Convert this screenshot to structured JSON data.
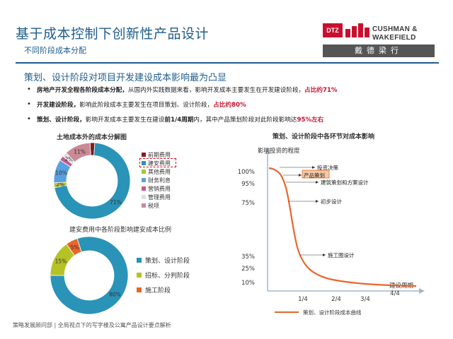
{
  "header": {
    "title": "基于成本控制下创新性产品设计",
    "subtitle": "不同阶段成本分配",
    "logo": {
      "dtz": "DTZ",
      "line1": "CUSHMAN &",
      "line2": "WAKEFIELD",
      "chinese": "戴德梁行"
    }
  },
  "section_heading": "策划、设计阶段对项目开发建设成本影响最为凸显",
  "bullets": [
    {
      "bold": "房地产开发全程各阶段成本分配，",
      "text": "从国内外实践数据来看，影响开发成本主要发生在开发建设阶段，",
      "red": "占比约71%"
    },
    {
      "bold": "开发建设阶段，",
      "text": "影响此阶段成本主要发生在项目策划、设计阶段，",
      "red": "占比约80%"
    },
    {
      "bold": "策划、设计阶段，",
      "text": "影响开发成本主要发生在建设",
      "bold2": "前1/4周期",
      "text2": "内，其中产品策划阶段对此阶段影响达",
      "red": "95%左右"
    }
  ],
  "footer": "策略发展顾问部 | 全局视点下的写字楼及公寓产品设计要点解析",
  "colors": {
    "accent": "#1f5d8c",
    "red": "#c8102e",
    "teal": "#2a93b8"
  },
  "chart_data": [
    {
      "type": "pie",
      "title": "土地成本外的成本分解图",
      "categories": [
        "前期费用",
        "建安费用",
        "其他费用",
        "财务利息",
        "营销费用",
        "管理费用",
        "税项"
      ],
      "values": [
        2,
        71,
        2,
        10,
        2,
        2,
        11
      ],
      "data_labels": [
        "2%",
        "71%",
        "2%",
        "10%",
        "",
        "2%",
        "11%"
      ],
      "colors": [
        "#8b1a1a",
        "#2a93b8",
        "#b5c226",
        "#5aa0e0",
        "#c85a8a",
        "#e0e0e0",
        "#c98a95"
      ],
      "highlighted": "建安费用",
      "legend": "right"
    },
    {
      "type": "pie",
      "title": "建安费用中各阶段影响建安成本比例",
      "categories": [
        "策划、设计阶段",
        "招标、分判阶段",
        "施工阶段"
      ],
      "values": [
        80,
        15,
        5
      ],
      "data_labels": [
        "80%",
        "15%",
        "5%"
      ],
      "colors": [
        "#2a93b8",
        "#b5c226",
        "#e8662a"
      ],
      "legend": "right"
    },
    {
      "type": "line",
      "title": "策划、设计阶段中各环节对成本影响",
      "ylabel": "影响投资的程度",
      "xlabel": "建设周期",
      "x_ticks": [
        "1/4",
        "2/4",
        "3/4",
        "4/4"
      ],
      "y_ticks": [
        "100%",
        "95%",
        "75%",
        "35%",
        "25%",
        "10%"
      ],
      "series": [
        {
          "name": "策划、设计阶段成本曲线",
          "color": "#e8662a"
        }
      ],
      "annotations": [
        "投资决策",
        "产品策划",
        "建筑策划和方案设计",
        "初步设计",
        "施工图设计"
      ],
      "highlighted_annotation": "产品策划"
    }
  ]
}
